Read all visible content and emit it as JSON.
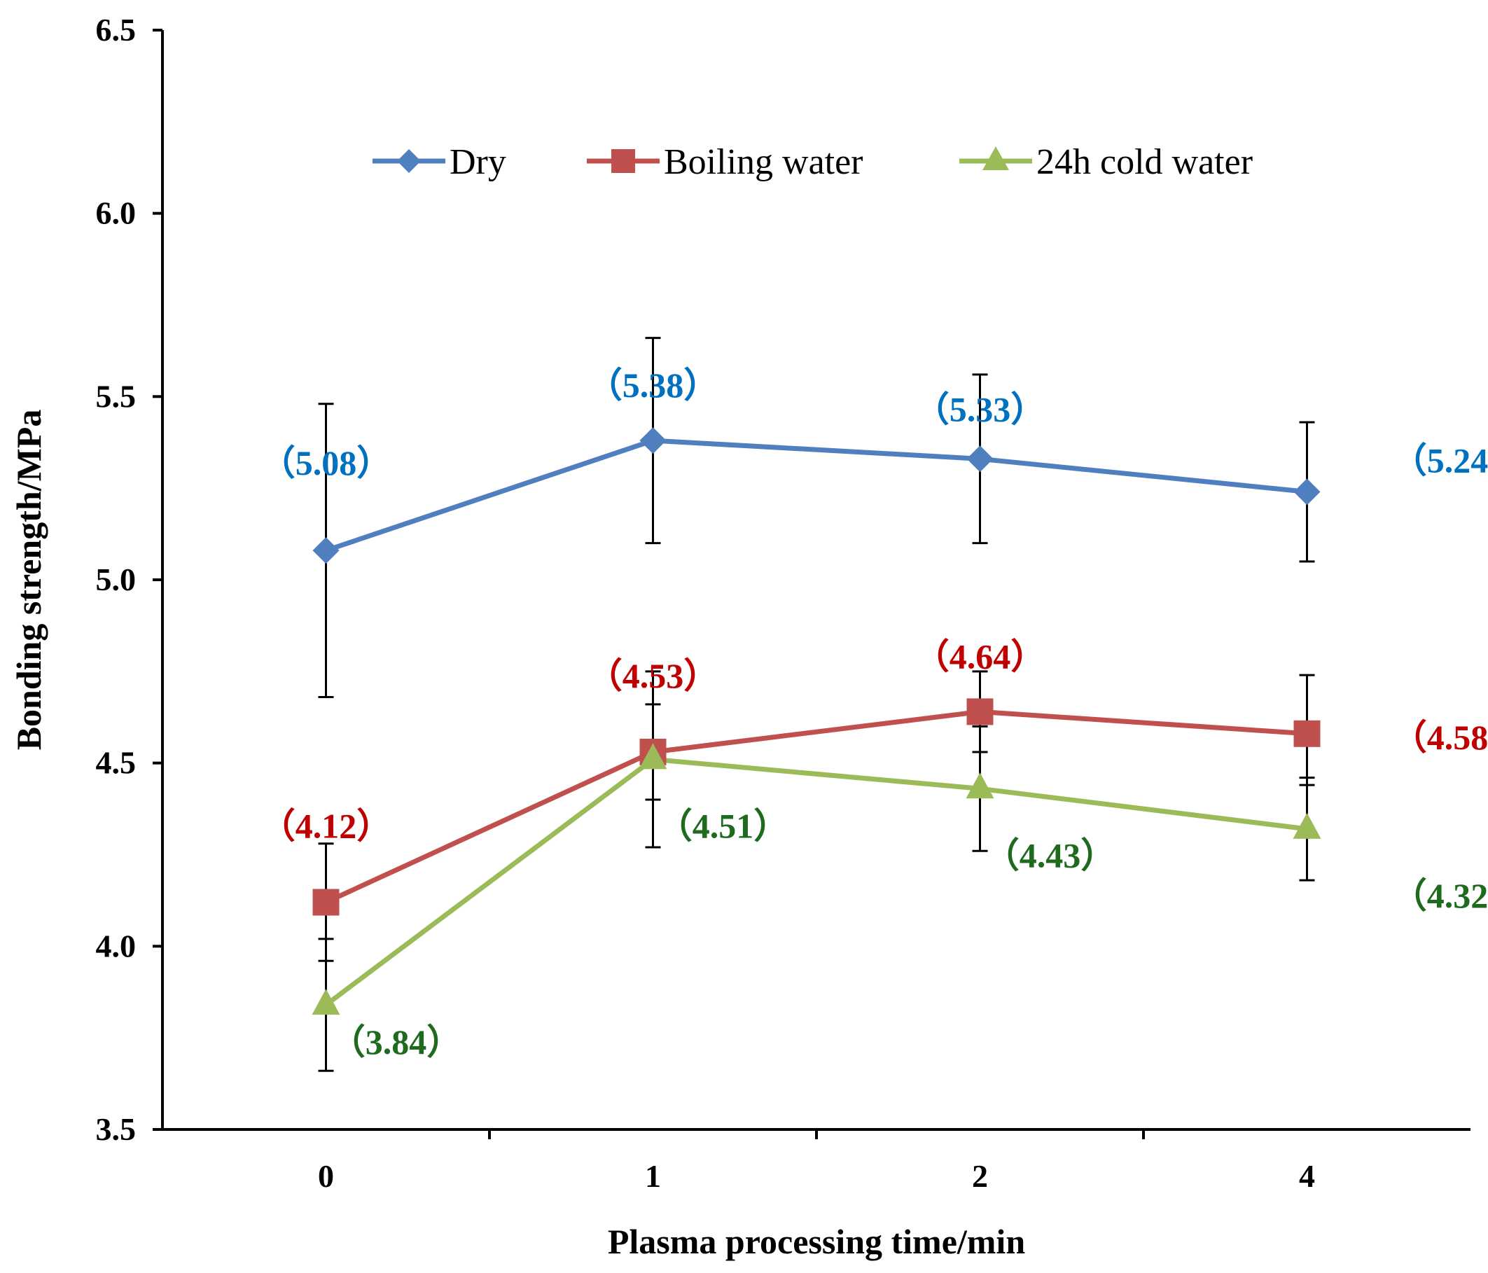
{
  "chart_data": {
    "type": "line",
    "title": "",
    "xlabel": "Plasma processing time/min",
    "ylabel": "Bonding strength/MPa",
    "categories": [
      "0",
      "1",
      "2",
      "4"
    ],
    "ylim": [
      3.5,
      6.5
    ],
    "yticks": [
      "3.5",
      "4.0",
      "4.5",
      "5.0",
      "5.5",
      "6.0",
      "6.5"
    ],
    "ytick_values": [
      3.5,
      4.0,
      4.5,
      5.0,
      5.5,
      6.0,
      6.5
    ],
    "grid": false,
    "legend_position": "top",
    "series": [
      {
        "name": "Dry",
        "color": "#4f7fbf",
        "label_color": "#0070c0",
        "marker": "diamond",
        "values": [
          5.08,
          5.38,
          5.33,
          5.24
        ],
        "err_upper": [
          5.48,
          5.66,
          5.56,
          5.43
        ],
        "err_lower": [
          4.68,
          5.1,
          5.1,
          5.05
        ],
        "labels": [
          "（5.08）",
          "（5.38）",
          "（5.33）",
          "（5.24）"
        ]
      },
      {
        "name": "Boiling water",
        "color": "#c0504d",
        "label_color": "#c00000",
        "marker": "square",
        "values": [
          4.12,
          4.53,
          4.64,
          4.58
        ],
        "err_upper": [
          4.28,
          4.75,
          4.75,
          4.74
        ],
        "err_lower": [
          3.96,
          4.4,
          4.53,
          4.44
        ],
        "labels": [
          "（4.12）",
          "（4.53）",
          "（4.64）",
          "（4.58）"
        ]
      },
      {
        "name": "24h cold water",
        "color": "#9bbb59",
        "label_color": "#1e6b1e",
        "marker": "triangle",
        "values": [
          3.84,
          4.51,
          4.43,
          4.32
        ],
        "err_upper": [
          4.02,
          4.66,
          4.6,
          4.46
        ],
        "err_lower": [
          3.66,
          4.27,
          4.26,
          4.18
        ],
        "labels": [
          "（3.84）",
          "（4.51）",
          "（4.43）",
          "（4.32）"
        ]
      }
    ]
  }
}
